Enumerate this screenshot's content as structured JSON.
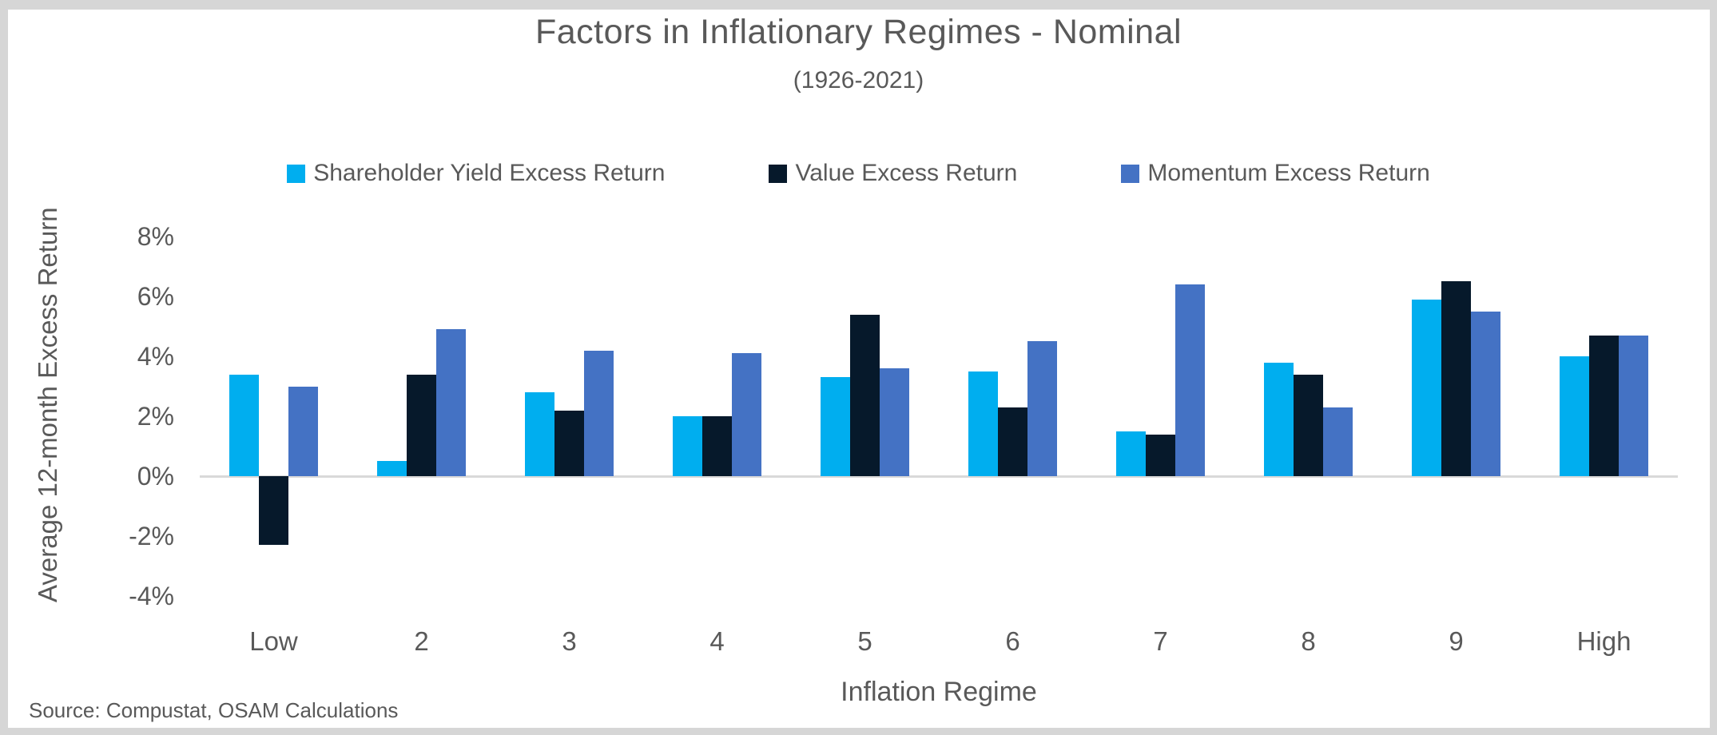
{
  "chart_data": {
    "type": "bar",
    "title": "Factors in Inflationary Regimes - Nominal",
    "subtitle": "(1926-2021)",
    "xlabel": "Inflation Regime",
    "ylabel": "Average 12-month Excess Return",
    "categories": [
      "Low",
      "2",
      "3",
      "4",
      "5",
      "6",
      "7",
      "8",
      "9",
      "High"
    ],
    "series": [
      {
        "name": "Shareholder Yield Excess Return",
        "color": "#00AEEF",
        "values": [
          3.4,
          0.5,
          2.8,
          2.0,
          3.3,
          3.5,
          1.5,
          3.8,
          5.9,
          4.0
        ]
      },
      {
        "name": "Value Excess Return",
        "color": "#06192B",
        "values": [
          -2.3,
          3.4,
          2.2,
          2.0,
          5.4,
          2.3,
          1.4,
          3.4,
          6.5,
          4.7
        ]
      },
      {
        "name": "Momentum Excess Return",
        "color": "#4472C4",
        "values": [
          3.0,
          4.9,
          4.2,
          4.1,
          3.6,
          4.5,
          6.4,
          2.3,
          5.5,
          4.7
        ]
      }
    ],
    "ylim": [
      -4,
      8
    ],
    "yticks": [
      8,
      6,
      4,
      2,
      0,
      -2,
      -4
    ],
    "ytick_labels": [
      "8%",
      "6%",
      "4%",
      "2%",
      "0%",
      "-2%",
      "-4%"
    ],
    "grid": false,
    "legend_position": "top-center",
    "axis_line_color": "#D9D9D9",
    "text_color": "#595959"
  },
  "footer": {
    "source": "Source: Compustat, OSAM Calculations"
  }
}
